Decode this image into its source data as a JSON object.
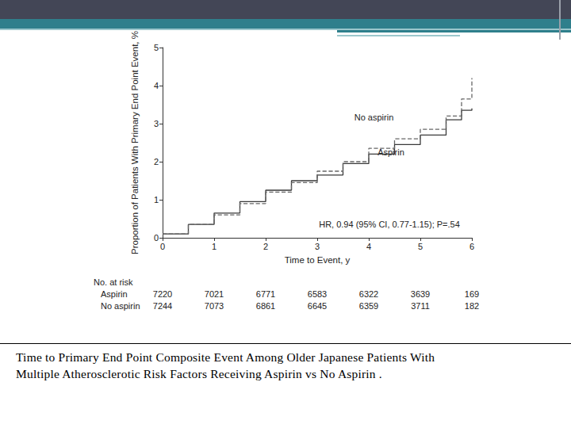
{
  "chart_data": {
    "type": "line",
    "xlabel": "Time to Event, y",
    "ylabel": "Proportion of Patients With Primary End Point Event, %",
    "xlim": [
      0,
      6
    ],
    "xticks": [
      0,
      1,
      2,
      3,
      4,
      5,
      6
    ],
    "ylim": [
      0,
      5
    ],
    "yticks": [
      0,
      1,
      2,
      3,
      4,
      5
    ],
    "grid": false,
    "x": [
      0,
      0.5,
      1,
      1.5,
      2,
      2.5,
      3,
      3.5,
      4,
      4.5,
      5,
      5.5,
      5.8,
      6
    ],
    "series": [
      {
        "name": "Aspirin",
        "color": "#3a3a3a",
        "line_style": "solid",
        "values": [
          0.1,
          0.35,
          0.65,
          0.95,
          1.25,
          1.5,
          1.65,
          1.95,
          2.2,
          2.45,
          2.7,
          3.1,
          3.35,
          3.4
        ]
      },
      {
        "name": "No aspirin",
        "color": "#666666",
        "line_style": "dashed",
        "values": [
          0.1,
          0.35,
          0.6,
          0.9,
          1.2,
          1.45,
          1.75,
          2.0,
          2.35,
          2.6,
          2.85,
          3.2,
          3.65,
          4.2
        ]
      }
    ],
    "annotations": [
      {
        "text": "No aspirin",
        "x": 4.1,
        "y": 3.17
      },
      {
        "text": "Aspirin",
        "x": 4.43,
        "y": 2.25
      },
      {
        "text": "HR, 0.94 (95% CI, 0.77-1.15); P=.54",
        "x": 4.4,
        "y": 0.35
      }
    ],
    "risk_table": {
      "title": "No. at risk",
      "times": [
        0,
        1,
        2,
        3,
        4,
        5,
        6
      ],
      "rows": [
        {
          "name": "Aspirin",
          "values": [
            7220,
            7021,
            6771,
            6583,
            6322,
            3639,
            169
          ]
        },
        {
          "name": "No aspirin",
          "values": [
            7244,
            7073,
            6861,
            6645,
            6359,
            3711,
            182
          ]
        }
      ]
    },
    "caption": [
      "Time to Primary End Point Composite Event Among Older Japanese Patients With",
      "Multiple Atherosclerotic Risk Factors Receiving Aspirin vs No Aspirin ."
    ]
  }
}
